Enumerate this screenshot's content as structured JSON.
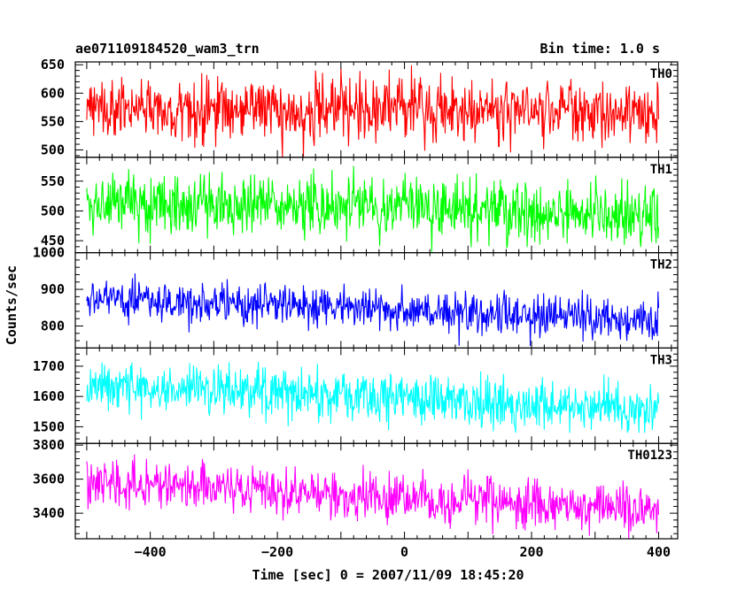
{
  "header": {
    "title": "ae071109184520_wam3_trn",
    "bin_time": "Bin time: 1.0 s"
  },
  "chart_data": {
    "type": "line",
    "title": "ae071109184520_wam3_trn",
    "xlabel": "Time [sec] 0 = 2007/11/09 18:45:20",
    "ylabel": "Counts/sec",
    "xlim": [
      -518,
      430
    ],
    "x_ticks": [
      -400,
      -200,
      0,
      200,
      400
    ],
    "x_ticklabels": [
      "−400",
      "−200",
      "0",
      "200",
      "400"
    ],
    "x_range": [
      -500,
      400
    ],
    "bin_seconds": 1.0,
    "grid": false,
    "panels": [
      {
        "name": "TH0",
        "color": "#ff0000",
        "ylim": [
          487,
          655
        ],
        "yticks": [
          500,
          550,
          600,
          650
        ],
        "mean_start": 570,
        "mean_end": 568,
        "spread": 28,
        "min": 487,
        "max": 655
      },
      {
        "name": "TH1",
        "color": "#00ff00",
        "ylim": [
          430,
          590
        ],
        "yticks": [
          450,
          500,
          550
        ],
        "mean_start": 515,
        "mean_end": 497,
        "spread": 25,
        "min": 430,
        "max": 580
      },
      {
        "name": "TH2",
        "color": "#0000ff",
        "ylim": [
          740,
          1000
        ],
        "yticks": [
          800,
          900,
          1000
        ],
        "mean_start": 875,
        "mean_end": 815,
        "spread": 28,
        "min": 745,
        "max": 1000
      },
      {
        "name": "TH3",
        "color": "#00ffff",
        "ylim": [
          1445,
          1760
        ],
        "yticks": [
          1500,
          1600,
          1700
        ],
        "mean_start": 1640,
        "mean_end": 1555,
        "spread": 40,
        "min": 1480,
        "max": 1760
      },
      {
        "name": "TH0123",
        "color": "#ff00ff",
        "ylim": [
          3250,
          3810
        ],
        "yticks": [
          3400,
          3600,
          3800
        ],
        "mean_start": 3590,
        "mean_end": 3420,
        "spread": 70,
        "min": 3250,
        "max": 3810
      }
    ]
  }
}
